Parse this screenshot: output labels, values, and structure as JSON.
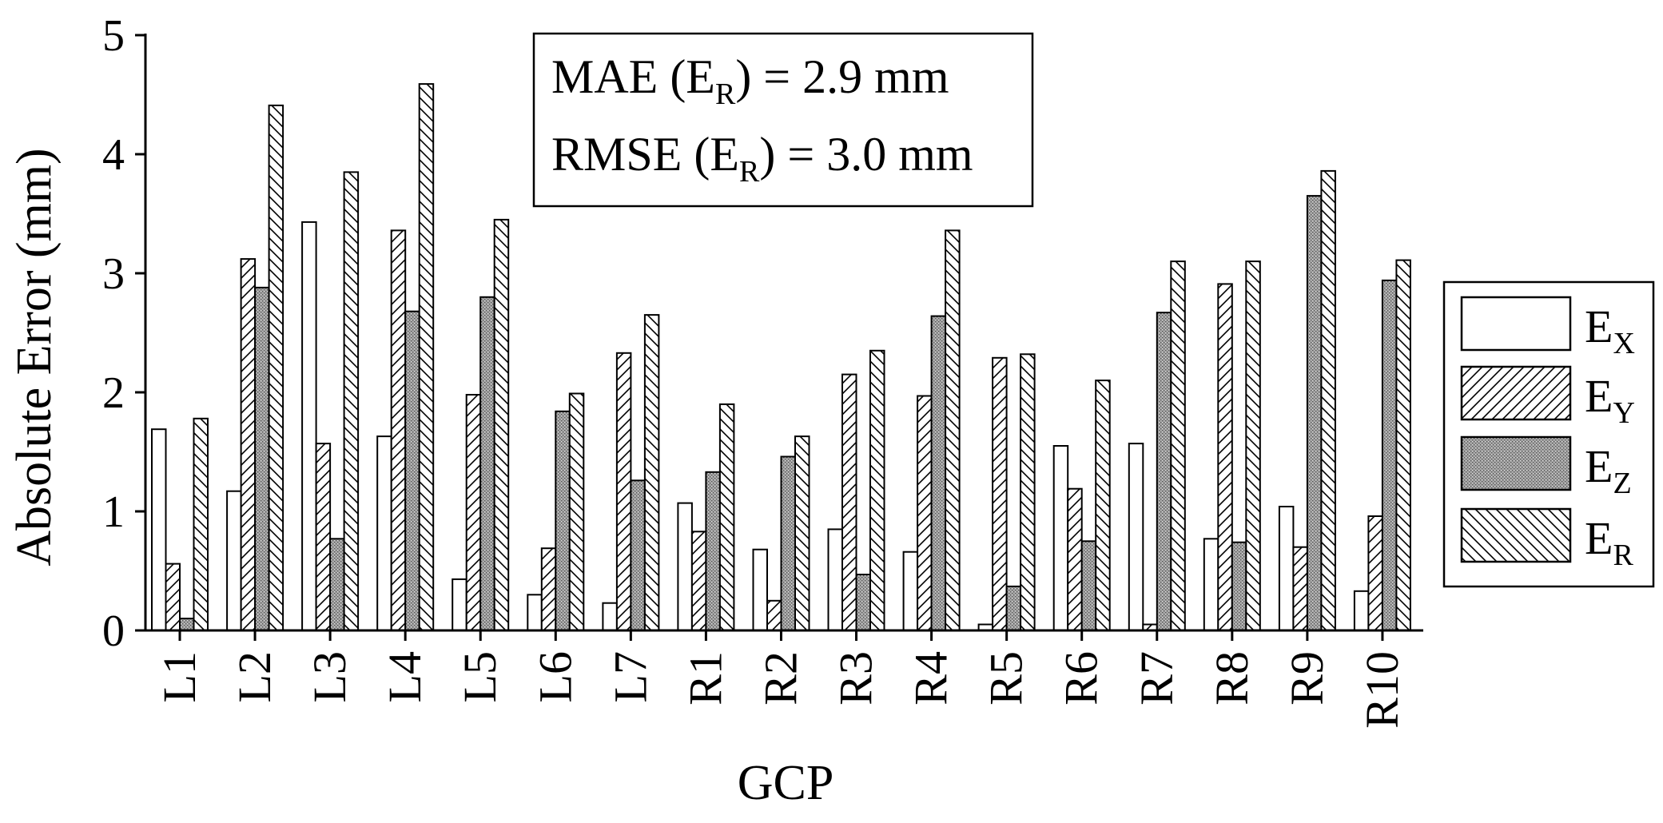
{
  "chart_data": {
    "type": "bar",
    "title": "",
    "xlabel": "GCP",
    "ylabel": "Absolute Error (mm)",
    "ylim": [
      0,
      5
    ],
    "yticks": [
      "0",
      "1",
      "2",
      "3",
      "4",
      "5"
    ],
    "categories": [
      "L1",
      "L2",
      "L3",
      "L4",
      "L5",
      "L6",
      "L7",
      "R1",
      "R2",
      "R3",
      "R4",
      "R5",
      "R6",
      "R7",
      "R8",
      "R9",
      "R10"
    ],
    "series": [
      {
        "name": "E",
        "sub": "X",
        "pattern": "none",
        "values": [
          1.69,
          1.17,
          3.43,
          1.63,
          0.43,
          0.3,
          0.23,
          1.07,
          0.68,
          0.85,
          0.66,
          0.05,
          1.55,
          1.57,
          0.77,
          1.04,
          0.33
        ]
      },
      {
        "name": "E",
        "sub": "Y",
        "pattern": "forward-hatch",
        "values": [
          0.56,
          3.12,
          1.57,
          3.36,
          1.98,
          0.69,
          2.33,
          0.83,
          0.25,
          2.15,
          1.97,
          2.29,
          1.19,
          0.05,
          2.91,
          0.7,
          0.96
        ]
      },
      {
        "name": "E",
        "sub": "Z",
        "pattern": "stipple",
        "values": [
          0.1,
          2.88,
          0.77,
          2.68,
          2.8,
          1.84,
          1.26,
          1.33,
          1.46,
          0.47,
          2.64,
          0.37,
          0.75,
          2.67,
          0.74,
          3.65,
          2.94
        ]
      },
      {
        "name": "E",
        "sub": "R",
        "pattern": "back-hatch",
        "values": [
          1.78,
          4.41,
          3.85,
          4.59,
          3.45,
          1.99,
          2.65,
          1.9,
          1.63,
          2.35,
          3.36,
          2.32,
          2.1,
          3.1,
          3.1,
          3.86,
          3.11
        ]
      }
    ],
    "annotation": {
      "line1": {
        "prefix": "MAE (E",
        "sub": "R",
        "suffix": ") = 2.9 mm"
      },
      "line2": {
        "prefix": "RMSE (E",
        "sub": "R",
        "suffix": ") = 3.0 mm"
      }
    },
    "legend_position": "right"
  }
}
